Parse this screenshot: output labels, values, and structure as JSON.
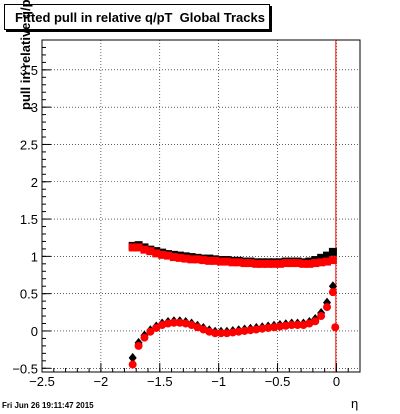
{
  "page": {
    "title": "Fitted pull in relative q/pT  Global Tracks",
    "timestamp": "Fri Jun 26 19:11:47 2015"
  },
  "chart_data": {
    "type": "scatter",
    "title": "Fitted pull in relative q/pT  Global Tracks",
    "xlabel": "η",
    "ylabel": "pull in relative q/pT",
    "xlim": [
      -2.5,
      0.2
    ],
    "ylim": [
      -0.55,
      3.9
    ],
    "x_ticks": [
      "-2.5",
      "-2",
      "-1.5",
      "-1",
      "-0.5",
      "0"
    ],
    "y_ticks": [
      "-0.5",
      "0",
      "0.5",
      "1",
      "1.5",
      "2",
      "2.5",
      "3",
      "3.5"
    ],
    "grid": true,
    "vertical_line": {
      "x": -0.005,
      "color": "#ff0000"
    },
    "colors": {
      "black_series": "#000000",
      "red_series": "#ff0000"
    },
    "series": [
      {
        "marker": "square",
        "color": "#000000",
        "x": [
          -1.73,
          -1.68,
          -1.63,
          -1.58,
          -1.53,
          -1.48,
          -1.43,
          -1.38,
          -1.33,
          -1.28,
          -1.23,
          -1.18,
          -1.13,
          -1.08,
          -1.03,
          -0.98,
          -0.93,
          -0.88,
          -0.83,
          -0.78,
          -0.73,
          -0.68,
          -0.63,
          -0.58,
          -0.53,
          -0.48,
          -0.43,
          -0.38,
          -0.33,
          -0.28,
          -0.23,
          -0.18,
          -0.13,
          -0.08,
          -0.03
        ],
        "y": [
          1.14,
          1.15,
          1.12,
          1.09,
          1.07,
          1.05,
          1.03,
          1.02,
          1.01,
          1.0,
          0.99,
          0.98,
          0.97,
          0.97,
          0.96,
          0.95,
          0.95,
          0.94,
          0.94,
          0.93,
          0.93,
          0.92,
          0.92,
          0.92,
          0.92,
          0.92,
          0.93,
          0.93,
          0.93,
          0.92,
          0.93,
          0.95,
          0.98,
          1.01,
          1.06
        ]
      },
      {
        "marker": "square",
        "color": "#ff0000",
        "x": [
          -1.73,
          -1.68,
          -1.63,
          -1.58,
          -1.53,
          -1.48,
          -1.43,
          -1.38,
          -1.33,
          -1.28,
          -1.23,
          -1.18,
          -1.13,
          -1.08,
          -1.03,
          -0.98,
          -0.93,
          -0.88,
          -0.83,
          -0.78,
          -0.73,
          -0.68,
          -0.63,
          -0.58,
          -0.53,
          -0.48,
          -0.43,
          -0.38,
          -0.33,
          -0.28,
          -0.23,
          -0.18,
          -0.13,
          -0.08,
          -0.03
        ],
        "y": [
          1.12,
          1.12,
          1.09,
          1.07,
          1.04,
          1.02,
          1.01,
          0.99,
          0.98,
          0.97,
          0.96,
          0.96,
          0.95,
          0.94,
          0.94,
          0.93,
          0.93,
          0.92,
          0.92,
          0.91,
          0.91,
          0.9,
          0.9,
          0.9,
          0.9,
          0.9,
          0.91,
          0.91,
          0.91,
          0.9,
          0.9,
          0.91,
          0.92,
          0.93,
          0.95
        ]
      },
      {
        "marker": "diamond",
        "color": "#000000",
        "x": [
          -1.73,
          -1.68,
          -1.63,
          -1.58,
          -1.53,
          -1.48,
          -1.43,
          -1.38,
          -1.33,
          -1.28,
          -1.23,
          -1.18,
          -1.13,
          -1.08,
          -1.03,
          -0.98,
          -0.93,
          -0.88,
          -0.83,
          -0.78,
          -0.73,
          -0.68,
          -0.63,
          -0.58,
          -0.53,
          -0.48,
          -0.43,
          -0.38,
          -0.33,
          -0.28,
          -0.23,
          -0.18,
          -0.13,
          -0.08,
          -0.03
        ],
        "y": [
          -0.36,
          -0.16,
          -0.06,
          0.01,
          0.06,
          0.1,
          0.12,
          0.13,
          0.13,
          0.12,
          0.1,
          0.07,
          0.04,
          0.01,
          -0.01,
          -0.01,
          -0.01,
          0.0,
          0.01,
          0.02,
          0.03,
          0.04,
          0.05,
          0.06,
          0.07,
          0.08,
          0.09,
          0.1,
          0.1,
          0.1,
          0.12,
          0.16,
          0.24,
          0.38,
          0.6
        ]
      },
      {
        "marker": "circle",
        "color": "#ff0000",
        "x": [
          -1.73,
          -1.68,
          -1.63,
          -1.58,
          -1.53,
          -1.48,
          -1.43,
          -1.38,
          -1.33,
          -1.28,
          -1.23,
          -1.18,
          -1.13,
          -1.08,
          -1.03,
          -0.98,
          -0.93,
          -0.88,
          -0.83,
          -0.78,
          -0.73,
          -0.68,
          -0.63,
          -0.58,
          -0.53,
          -0.48,
          -0.43,
          -0.38,
          -0.33,
          -0.28,
          -0.23,
          -0.18,
          -0.13,
          -0.08,
          -0.03,
          -0.01
        ],
        "y": [
          -0.45,
          -0.2,
          -0.09,
          -0.01,
          0.04,
          0.08,
          0.1,
          0.11,
          0.11,
          0.1,
          0.08,
          0.05,
          0.02,
          -0.01,
          -0.03,
          -0.03,
          -0.03,
          -0.02,
          -0.01,
          0.0,
          0.01,
          0.02,
          0.03,
          0.04,
          0.05,
          0.06,
          0.07,
          0.08,
          0.08,
          0.08,
          0.1,
          0.13,
          0.2,
          0.32,
          0.52,
          0.05
        ]
      }
    ]
  }
}
